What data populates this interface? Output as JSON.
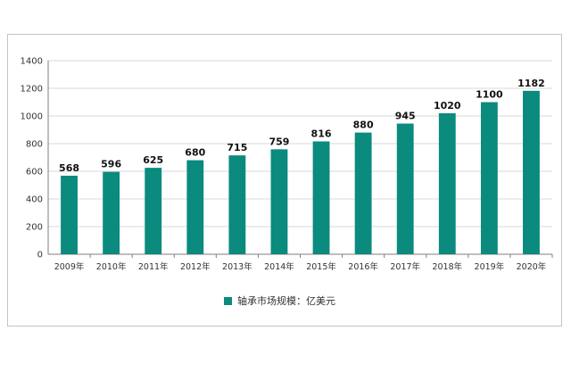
{
  "chart_data": {
    "type": "bar",
    "categories": [
      "2009年",
      "2010年",
      "2011年",
      "2012年",
      "2013年",
      "2014年",
      "2015年",
      "2016年",
      "2017年",
      "2018年",
      "2019年",
      "2020年"
    ],
    "series": [
      {
        "name": "轴承市场规模：亿美元",
        "values": [
          568,
          596,
          625,
          680,
          715,
          759,
          816,
          880,
          945,
          1020,
          1100,
          1182
        ],
        "color": "#0b8a7e"
      }
    ],
    "ylim": [
      0,
      1400
    ],
    "yticks": [
      0,
      200,
      400,
      600,
      800,
      1000,
      1200,
      1400
    ],
    "grid": true,
    "legend_position": "bottom"
  }
}
